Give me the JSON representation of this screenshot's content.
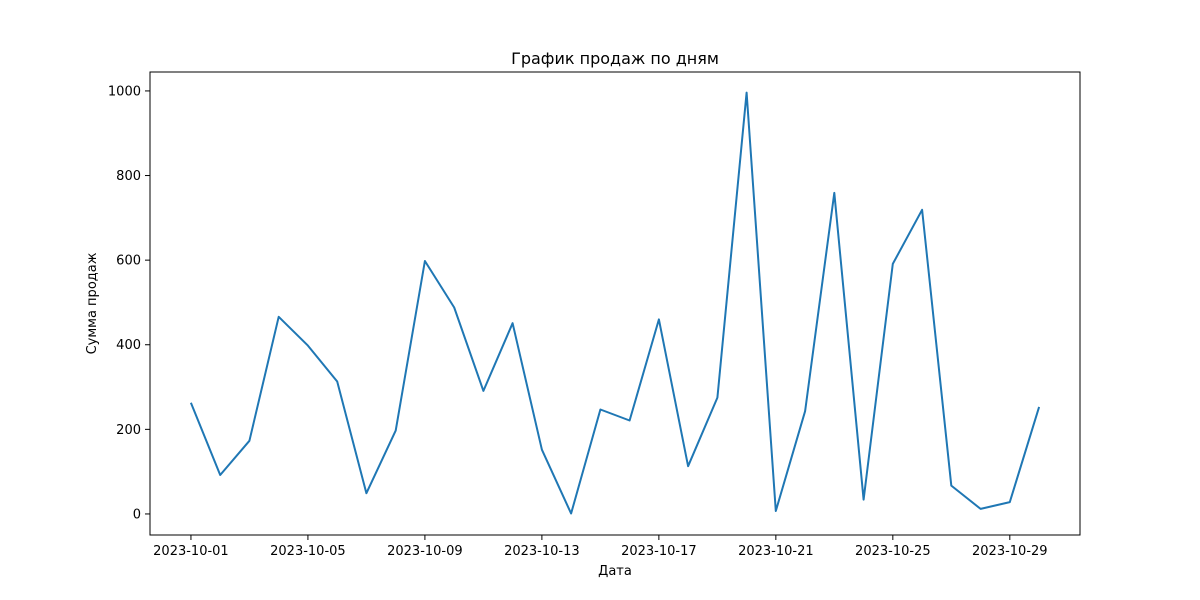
{
  "chart_data": {
    "type": "line",
    "title": "График продаж по дням",
    "xlabel": "Дата",
    "ylabel": "Сумма продаж",
    "x": [
      "2023-10-01",
      "2023-10-02",
      "2023-10-03",
      "2023-10-04",
      "2023-10-05",
      "2023-10-06",
      "2023-10-07",
      "2023-10-08",
      "2023-10-09",
      "2023-10-10",
      "2023-10-11",
      "2023-10-12",
      "2023-10-13",
      "2023-10-14",
      "2023-10-15",
      "2023-10-16",
      "2023-10-17",
      "2023-10-18",
      "2023-10-19",
      "2023-10-20",
      "2023-10-21",
      "2023-10-22",
      "2023-10-23",
      "2023-10-24",
      "2023-10-25",
      "2023-10-26",
      "2023-10-27",
      "2023-10-28",
      "2023-10-29",
      "2023-10-30"
    ],
    "series": [
      {
        "values": [
          263,
          92,
          173,
          466,
          398,
          313,
          49,
          197,
          598,
          488,
          291,
          451,
          152,
          1,
          247,
          221,
          460,
          113,
          275,
          996,
          7,
          243,
          759,
          34,
          591,
          719,
          67,
          12,
          28,
          253
        ],
        "color": "#1f77b4"
      }
    ],
    "xlim": [
      "2023-09-29T14:24",
      "2023-10-31T09:36"
    ],
    "ylim": [
      -49.75,
      1044.75
    ],
    "xticks": [
      "2023-10-01",
      "2023-10-05",
      "2023-10-09",
      "2023-10-13",
      "2023-10-17",
      "2023-10-21",
      "2023-10-25",
      "2023-10-29"
    ],
    "yticks": [
      0,
      200,
      400,
      600,
      800,
      1000
    ],
    "grid": false,
    "legend": "none"
  }
}
